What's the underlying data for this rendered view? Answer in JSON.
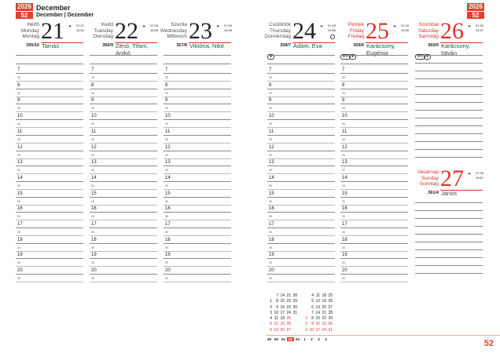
{
  "header": {
    "year": "2026",
    "week": "52",
    "month": "December",
    "month_translations": "December | Dezember"
  },
  "days": [
    {
      "names": [
        "Hétfő",
        "Monday",
        "Montag"
      ],
      "num": "21",
      "sunrise": "07:27",
      "sunset": "15:54",
      "yearday": "355/10",
      "namedays": "Tamás",
      "red": false,
      "symbols": []
    },
    {
      "names": [
        "Kedd",
        "Tuesday",
        "Dienstag"
      ],
      "num": "22",
      "sunrise": "07:28",
      "sunset": "15:55",
      "yearday": "356/9",
      "namedays": "Zénó, Tifani, Anikó",
      "red": false,
      "symbols": []
    },
    {
      "names": [
        "Szerda",
        "Wednesday",
        "Mittwoch"
      ],
      "num": "23",
      "sunrise": "07:29",
      "sunset": "15:55",
      "yearday": "357/8",
      "namedays": "Viktória, Niké",
      "red": false,
      "symbols": []
    },
    {
      "names": [
        "Csütörtök",
        "Thursday",
        "Donnerstag"
      ],
      "num": "24",
      "sunrise": "07:29",
      "sunset": "15:56",
      "yearday": "358/7",
      "namedays": "Ádám, Éva",
      "red": false,
      "symbols": [
        "A"
      ],
      "moon": "full-moon"
    },
    {
      "names": [
        "Péntek",
        "Friday",
        "Freitag"
      ],
      "num": "25",
      "sunrise": "07:29",
      "sunset": "15:56",
      "yearday": "359/6",
      "namedays": "Karácsony, Eugénia",
      "red": true,
      "symbols": [
        "EU",
        "A"
      ]
    },
    {
      "names": [
        "Szombat",
        "Saturday",
        "Samstag"
      ],
      "num": "26",
      "sunrise": "07:30",
      "sunset": "15:57",
      "yearday": "360/5",
      "namedays": "Karácsony, István",
      "red": true,
      "symbols": [
        "EU",
        "A"
      ]
    },
    {
      "names": [
        "Vasárnap",
        "Sunday",
        "Sonntag"
      ],
      "num": "27",
      "sunrise": "07:30",
      "sunset": "15:57",
      "yearday": "361/4",
      "namedays": "János",
      "red": true,
      "symbols": []
    }
  ],
  "hours": [
    "7",
    "8",
    "9",
    "10",
    "11",
    "12",
    "13",
    "14",
    "15",
    "16",
    "17",
    "18",
    "19",
    "20"
  ],
  "half_label": "30",
  "mini_calendars": [
    {
      "rows": [
        [
          "",
          "7",
          "14",
          "21",
          "28"
        ],
        [
          "1",
          "8",
          "15",
          "22",
          "29"
        ],
        [
          "2",
          "9",
          "16",
          "23",
          "30"
        ],
        [
          "3",
          "10",
          "17",
          "24",
          "31"
        ],
        [
          "4",
          "11",
          "18",
          "25",
          ""
        ],
        [
          "5",
          "12",
          "19",
          "26",
          ""
        ],
        [
          "6",
          "13",
          "20",
          "27",
          ""
        ]
      ]
    },
    {
      "rows": [
        [
          "",
          "4",
          "11",
          "18",
          "25"
        ],
        [
          "",
          "5",
          "12",
          "19",
          "26"
        ],
        [
          "",
          "6",
          "13",
          "20",
          "27"
        ],
        [
          "",
          "7",
          "14",
          "21",
          "28"
        ],
        [
          "1",
          "8",
          "15",
          "22",
          "29"
        ],
        [
          "2",
          "9",
          "16",
          "23",
          "30"
        ],
        [
          "3",
          "10",
          "17",
          "24",
          "31"
        ]
      ]
    }
  ],
  "weeks": [
    "49",
    "50",
    "51",
    "52",
    "53",
    "1",
    "2",
    "3",
    "4"
  ],
  "current_week": "52",
  "page_number": "52",
  "colors": {
    "accent": "#e2402f"
  }
}
